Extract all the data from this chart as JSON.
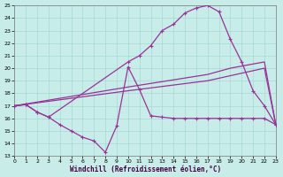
{
  "background_color": "#c8ece8",
  "grid_color": "#a8d8d4",
  "line_color": "#993399",
  "xlabel": "Windchill (Refroidissement éolien,°C)",
  "xlim": [
    0,
    23
  ],
  "ylim": [
    13,
    25
  ],
  "xticks": [
    0,
    1,
    2,
    3,
    4,
    5,
    6,
    7,
    8,
    9,
    10,
    11,
    12,
    13,
    14,
    15,
    16,
    17,
    18,
    19,
    20,
    21,
    22,
    23
  ],
  "yticks": [
    13,
    14,
    15,
    16,
    17,
    18,
    19,
    20,
    21,
    22,
    23,
    24,
    25
  ],
  "curve1_x": [
    0,
    1,
    2,
    3,
    4,
    5,
    6,
    7,
    8,
    9,
    10,
    11,
    12,
    13,
    14,
    15,
    16,
    17,
    18,
    19,
    20,
    21,
    22,
    23
  ],
  "curve1_y": [
    17.0,
    17.1,
    16.5,
    16.1,
    15.5,
    15.0,
    14.5,
    14.2,
    13.3,
    15.4,
    20.1,
    18.3,
    16.2,
    16.1,
    16.0,
    16.0,
    16.0,
    16.0,
    16.0,
    16.0,
    16.0,
    16.0,
    16.0,
    15.5
  ],
  "curve2_x": [
    0,
    1,
    2,
    3,
    10,
    11,
    12,
    13,
    14,
    15,
    16,
    17,
    18,
    19,
    20,
    21,
    22,
    23
  ],
  "curve2_y": [
    17.0,
    17.1,
    16.5,
    16.1,
    20.5,
    21.0,
    21.8,
    23.0,
    23.5,
    24.4,
    24.8,
    25.0,
    24.5,
    22.3,
    20.5,
    18.2,
    17.0,
    15.5
  ],
  "line3_x": [
    0,
    10,
    17,
    19,
    22,
    23
  ],
  "line3_y": [
    17.0,
    18.5,
    19.5,
    20.0,
    20.5,
    15.5
  ],
  "line4_x": [
    0,
    10,
    17,
    22,
    23
  ],
  "line4_y": [
    17.0,
    18.2,
    19.0,
    20.0,
    15.5
  ]
}
